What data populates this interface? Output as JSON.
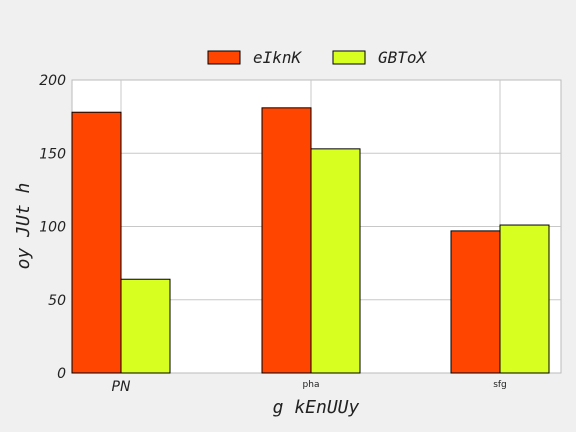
{
  "chart_data": {
    "type": "bar",
    "categories": [
      "PN",
      "pha",
      "sfg"
    ],
    "series": [
      {
        "name": "eIknK",
        "values": [
          178,
          181,
          97
        ],
        "color": "#ff4500"
      },
      {
        "name": "GBToX",
        "values": [
          64,
          153,
          101
        ],
        "color": "#d7ff1f"
      }
    ],
    "xlabel": "g kEnUUy",
    "ylabel": "oy JUt h",
    "ylim": [
      0,
      200
    ],
    "yticks": [
      0,
      50,
      100,
      150,
      200
    ],
    "grid": true,
    "legend_position": "top"
  }
}
